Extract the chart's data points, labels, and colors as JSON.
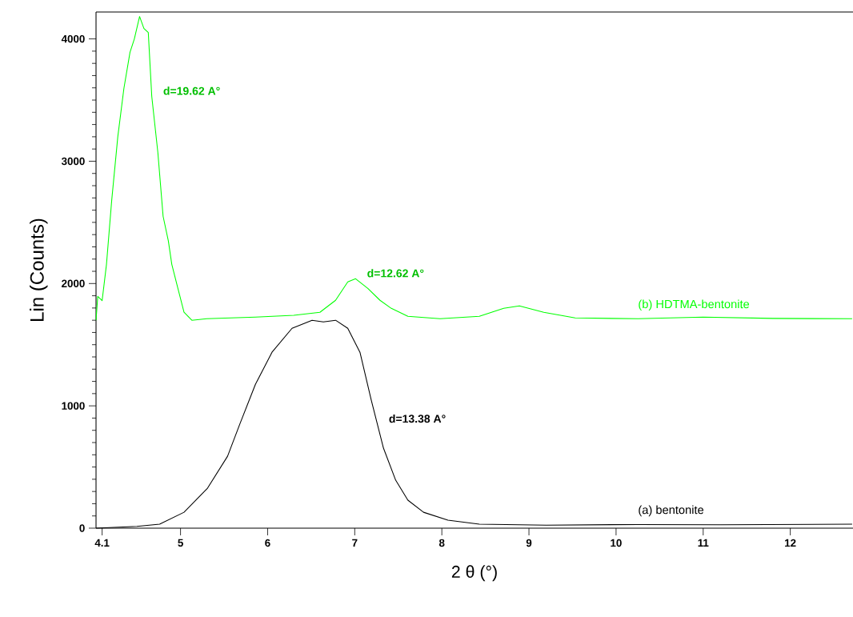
{
  "chart_data": {
    "type": "line",
    "xlabel": "2 θ (°)",
    "ylabel": "Lin (Counts)",
    "xlim": [
      4.03,
      12.72
    ],
    "ylim": [
      0,
      4220
    ],
    "xticks": [
      4.1,
      5,
      6,
      7,
      8,
      9,
      10,
      11,
      12
    ],
    "yticks": [
      0,
      1000,
      2000,
      3000,
      4000
    ],
    "grid": false,
    "legend": false,
    "marker": "none",
    "line_style": "solid",
    "series": [
      {
        "name": "(b) HDTMA-bentonite",
        "color": "#00ff00",
        "x": [
          4.03,
          4.05,
          4.1,
          4.15,
          4.21,
          4.28,
          4.35,
          4.42,
          4.47,
          4.53,
          4.58,
          4.63,
          4.67,
          4.74,
          4.8,
          4.86,
          4.9,
          4.97,
          5.04,
          5.13,
          5.3,
          5.86,
          6.3,
          6.6,
          6.78,
          6.92,
          7.01,
          7.15,
          7.29,
          7.42,
          7.61,
          7.98,
          8.43,
          8.71,
          8.89,
          9.17,
          9.53,
          10.25,
          11,
          11.8,
          12.71
        ],
        "values": [
          1700,
          1895,
          1860,
          2157,
          2680,
          3200,
          3595,
          3890,
          4000,
          4183,
          4085,
          4052,
          3530,
          3070,
          2550,
          2350,
          2157,
          1960,
          1765,
          1700,
          1712,
          1725,
          1740,
          1765,
          1863,
          2013,
          2039,
          1960,
          1863,
          1797,
          1732,
          1712,
          1732,
          1797,
          1817,
          1765,
          1719,
          1712,
          1725,
          1715,
          1712
        ]
      },
      {
        "name": "(a) bentonite",
        "color": "#000000",
        "x": [
          4.03,
          4.5,
          4.76,
          5.04,
          5.31,
          5.54,
          5.68,
          5.86,
          6.05,
          6.28,
          6.51,
          6.64,
          6.78,
          6.92,
          7.06,
          7.19,
          7.33,
          7.47,
          7.61,
          7.79,
          8.07,
          8.43,
          9.2,
          10.25,
          11.2,
          12.71
        ],
        "values": [
          0,
          15,
          33,
          130,
          327,
          588,
          850,
          1176,
          1438,
          1634,
          1700,
          1686,
          1700,
          1634,
          1438,
          1046,
          654,
          392,
          229,
          130,
          65,
          33,
          25,
          30,
          28,
          33
        ]
      }
    ],
    "annotations": [
      {
        "text": "d=19.62 A°",
        "x": 4.67,
        "y": 3530
      },
      {
        "text": "d=12.62 A°",
        "x": 7.01,
        "y": 2039
      },
      {
        "text": "d=13.38 A°",
        "x": 7.26,
        "y": 850
      }
    ]
  }
}
